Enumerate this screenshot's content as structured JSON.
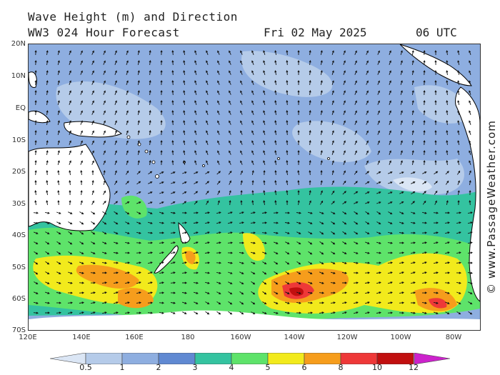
{
  "header": {
    "title_line1": "Wave Height (m) and Direction",
    "title_line2": "WW3 024 Hour Forecast",
    "date": "Fri 02 May 2025",
    "time": "06 UTC"
  },
  "credit": "© www.PassageWeather.com",
  "axes": {
    "lat_labels": [
      "20N",
      "10N",
      "EQ",
      "10S",
      "20S",
      "30S",
      "40S",
      "50S",
      "60S",
      "70S"
    ],
    "lon_labels": [
      "120E",
      "140E",
      "160E",
      "180",
      "160W",
      "140W",
      "120W",
      "100W",
      "80W"
    ]
  },
  "legend": {
    "labels": [
      "0.5",
      "1",
      "2",
      "3",
      "4",
      "5",
      "6",
      "8",
      "10",
      "12"
    ],
    "colors": [
      "#dbe6f5",
      "#b5cbe9",
      "#8eaee0",
      "#6089d2",
      "#34c3a0",
      "#5ee36a",
      "#f2ea1c",
      "#f69d1c",
      "#ee3838",
      "#c10f0f",
      "#cc22cc"
    ]
  },
  "map_colors": {
    "ocean_base": "#8eaee0",
    "land": "#ffffff",
    "coast": "#000000",
    "arrow": "#111111"
  }
}
